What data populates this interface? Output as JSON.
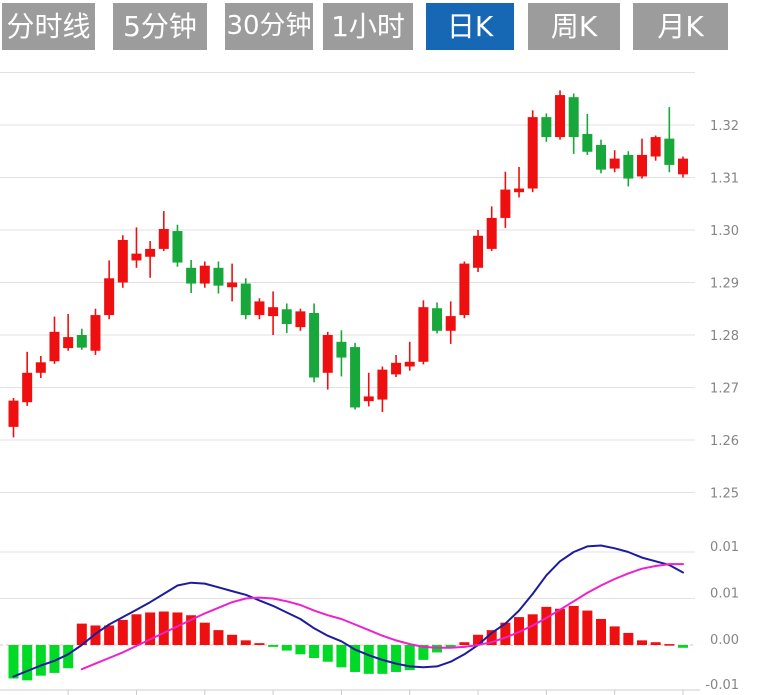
{
  "toolbar": {
    "tabs": [
      {
        "label": "分时线",
        "active": false
      },
      {
        "label": "5分钟",
        "active": false
      },
      {
        "label": "30分钟",
        "active": false
      },
      {
        "label": "1小时",
        "active": false
      },
      {
        "label": "日K",
        "active": true
      },
      {
        "label": "周K",
        "active": false
      },
      {
        "label": "月K",
        "active": false
      }
    ]
  },
  "colors": {
    "tab_bg": "#9c9c9c",
    "tab_active_bg": "#1768b4",
    "tab_text": "#ffffff",
    "candle_up": "#ee1010",
    "candle_down": "#18a73a",
    "hist_up": "#ee1010",
    "hist_down": "#00d926",
    "dif_line": "#1c1c9e",
    "dea_line": "#ee22cc",
    "grid": "#e2e2e2",
    "zero_line": "#ffb4b4",
    "axis": "#cccccc",
    "label": "#858585",
    "background": "#ffffff"
  },
  "chart_data": {
    "type": "candlestick",
    "title": "",
    "interval_selected": "日K",
    "price_axis": {
      "tick_labels": [
        "1.32",
        "1.31",
        "1.30",
        "1.29",
        "1.28",
        "1.27",
        "1.26",
        "1.25"
      ],
      "tick_values": [
        1.32,
        1.31,
        1.3,
        1.29,
        1.28,
        1.27,
        1.26,
        1.25
      ],
      "unlabeled_top_gridline": 1.33,
      "range": [
        1.25,
        1.33
      ],
      "side": "right",
      "grid": true
    },
    "macd_axis": {
      "tick_labels": [
        "0.01",
        "0.01",
        "0.00",
        "-0.01"
      ],
      "tick_values": [
        0.01,
        0.005,
        0.0,
        -0.005
      ],
      "zero_line_style": "dashed-pink",
      "side": "right"
    },
    "x_axis": {
      "tick_candle_indices": [
        4,
        9,
        14,
        19,
        24,
        29,
        34,
        39,
        44,
        49
      ],
      "labels_visible": false
    },
    "candles_ohlc": [
      [
        1.2625,
        1.268,
        1.2605,
        1.2675
      ],
      [
        1.2672,
        1.2768,
        1.2665,
        1.2728
      ],
      [
        1.2728,
        1.276,
        1.2718,
        1.2748
      ],
      [
        1.275,
        1.2835,
        1.2745,
        1.2806
      ],
      [
        1.2775,
        1.284,
        1.277,
        1.2796
      ],
      [
        1.28,
        1.2812,
        1.2772,
        1.2776
      ],
      [
        1.277,
        1.285,
        1.2762,
        1.2838
      ],
      [
        1.2838,
        1.2942,
        1.283,
        1.2908
      ],
      [
        1.29,
        1.299,
        1.289,
        1.2981
      ],
      [
        1.2942,
        1.3005,
        1.2928,
        1.2955
      ],
      [
        1.2949,
        1.2979,
        1.2909,
        1.2964
      ],
      [
        1.2964,
        1.3036,
        1.296,
        1.3002
      ],
      [
        1.2998,
        1.301,
        1.293,
        1.2938
      ],
      [
        1.2928,
        1.2943,
        1.288,
        1.2898
      ],
      [
        1.2898,
        1.294,
        1.289,
        1.2932
      ],
      [
        1.2928,
        1.294,
        1.2879,
        1.2894
      ],
      [
        1.2891,
        1.2936,
        1.2864,
        1.29
      ],
      [
        1.2898,
        1.2908,
        1.283,
        1.2838
      ],
      [
        1.2838,
        1.287,
        1.283,
        1.2864
      ],
      [
        1.2836,
        1.2883,
        1.28,
        1.2853
      ],
      [
        1.2849,
        1.286,
        1.2804,
        1.2821
      ],
      [
        1.2815,
        1.285,
        1.2808,
        1.2845
      ],
      [
        1.2842,
        1.286,
        1.271,
        1.2719
      ],
      [
        1.2728,
        1.2806,
        1.2696,
        1.28
      ],
      [
        1.2787,
        1.2809,
        1.2721,
        1.2757
      ],
      [
        1.2777,
        1.2785,
        1.2658,
        1.2662
      ],
      [
        1.2674,
        1.2728,
        1.2664,
        1.2683
      ],
      [
        1.2677,
        1.274,
        1.2653,
        1.2734
      ],
      [
        1.2725,
        1.2762,
        1.272,
        1.2747
      ],
      [
        1.274,
        1.2787,
        1.2732,
        1.2749
      ],
      [
        1.2749,
        1.2866,
        1.2744,
        1.2853
      ],
      [
        1.2851,
        1.2862,
        1.2803,
        1.2808
      ],
      [
        1.2808,
        1.2864,
        1.2783,
        1.2836
      ],
      [
        1.2838,
        1.294,
        1.2832,
        1.2936
      ],
      [
        1.2928,
        1.3,
        1.292,
        1.2989
      ],
      [
        1.2964,
        1.3045,
        1.296,
        1.3023
      ],
      [
        1.3023,
        1.3111,
        1.3004,
        1.3077
      ],
      [
        1.3072,
        1.312,
        1.3062,
        1.3079
      ],
      [
        1.3079,
        1.3228,
        1.3072,
        1.3215
      ],
      [
        1.3215,
        1.3222,
        1.3168,
        1.3177
      ],
      [
        1.3177,
        1.3266,
        1.3172,
        1.3257
      ],
      [
        1.3253,
        1.326,
        1.3145,
        1.3177
      ],
      [
        1.3183,
        1.3221,
        1.3143,
        1.3149
      ],
      [
        1.3162,
        1.3172,
        1.3108,
        1.3115
      ],
      [
        1.3117,
        1.3152,
        1.311,
        1.3136
      ],
      [
        1.3143,
        1.315,
        1.3083,
        1.3098
      ],
      [
        1.3102,
        1.3174,
        1.3098,
        1.3143
      ],
      [
        1.314,
        1.318,
        1.3132,
        1.3177
      ],
      [
        1.3174,
        1.3234,
        1.311,
        1.3124
      ],
      [
        1.3106,
        1.314,
        1.31,
        1.3136
      ]
    ],
    "macd": {
      "histogram": [
        -0.0036,
        -0.0038,
        -0.0033,
        -0.003,
        -0.0025,
        0.0023,
        0.0021,
        0.0021,
        0.0027,
        0.0033,
        0.0035,
        0.0036,
        0.0035,
        0.0032,
        0.0024,
        0.0016,
        0.0011,
        0.0005,
        0.0002,
        -0.0002,
        -0.0006,
        -0.001,
        -0.0014,
        -0.0018,
        -0.0024,
        -0.0029,
        -0.0031,
        -0.0031,
        -0.0029,
        -0.0027,
        -0.0016,
        -0.0008,
        -0.0003,
        0.0003,
        0.0011,
        0.0016,
        0.0024,
        0.003,
        0.0033,
        0.0041,
        0.0039,
        0.0042,
        0.0037,
        0.0028,
        0.002,
        0.0013,
        0.0005,
        0.0003,
        0.0001,
        -0.0003
      ],
      "dif_start_index": 0,
      "dif": [
        -0.0034,
        -0.0028,
        -0.0022,
        -0.0017,
        -0.001,
        0.0,
        0.0012,
        0.0022,
        0.003,
        0.0038,
        0.0046,
        0.0055,
        0.0064,
        0.0067,
        0.0066,
        0.0062,
        0.0058,
        0.0054,
        0.0048,
        0.0042,
        0.0035,
        0.0028,
        0.0018,
        0.001,
        0.0004,
        -0.0005,
        -0.0011,
        -0.0016,
        -0.002,
        -0.0023,
        -0.0024,
        -0.0023,
        -0.0018,
        -0.001,
        0.0,
        0.0013,
        0.0023,
        0.0037,
        0.0055,
        0.0075,
        0.009,
        0.01,
        0.0106,
        0.0107,
        0.0104,
        0.01,
        0.0094,
        0.009,
        0.0086,
        0.0078
      ],
      "dea_start_index": 5,
      "dea": [
        -0.0026,
        -0.002,
        -0.0014,
        -0.0008,
        -0.0001,
        0.0006,
        0.0013,
        0.002,
        0.0027,
        0.0034,
        0.004,
        0.0046,
        0.005,
        0.0051,
        0.005,
        0.0047,
        0.0043,
        0.0037,
        0.0032,
        0.0028,
        0.0022,
        0.0016,
        0.001,
        0.0005,
        0.0001,
        -0.0002,
        -0.0003,
        -0.0003,
        -0.0002,
        0.0,
        0.0003,
        0.0008,
        0.0014,
        0.0021,
        0.0029,
        0.0038,
        0.0047,
        0.0056,
        0.0064,
        0.0071,
        0.0077,
        0.0082,
        0.0085,
        0.0087,
        0.0087
      ]
    }
  }
}
